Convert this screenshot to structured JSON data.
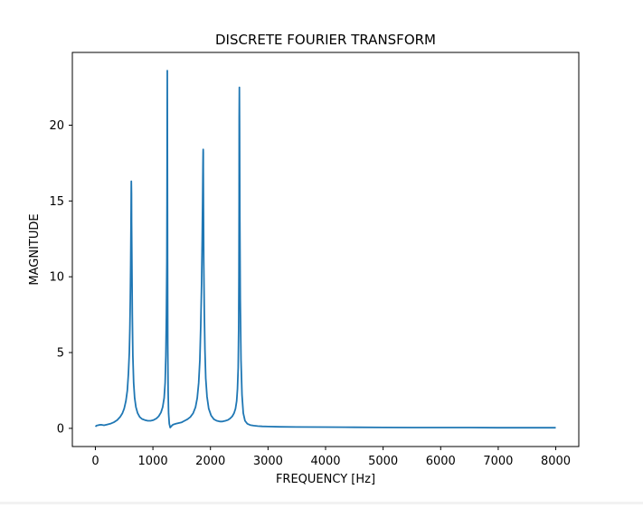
{
  "chart_data": {
    "type": "line",
    "title": "DISCRETE FOURIER TRANSFORM",
    "xlabel": "FREQUENCY [Hz]",
    "ylabel": "MAGNITUDE",
    "xlim": [
      -400,
      8400
    ],
    "ylim": [
      -1.2,
      24.8
    ],
    "xticks": [
      0,
      1000,
      2000,
      3000,
      4000,
      5000,
      6000,
      7000,
      8000
    ],
    "yticks": [
      0,
      5,
      10,
      15,
      20
    ],
    "grid": false,
    "series_color": "#1f77b4",
    "peaks": [
      {
        "frequency": 625,
        "magnitude": 16.3
      },
      {
        "frequency": 1250,
        "magnitude": 23.6
      },
      {
        "frequency": 1875,
        "magnitude": 18.4
      },
      {
        "frequency": 2500,
        "magnitude": 22.5
      }
    ],
    "series": [
      {
        "x": [
          0,
          20,
          60,
          100,
          150,
          200,
          260,
          320,
          380,
          430,
          470,
          500,
          530,
          555,
          575,
          590,
          600,
          608,
          614,
          618,
          621,
          623,
          625,
          627,
          630,
          635,
          642,
          652,
          665,
          682,
          705,
          735,
          770,
          810,
          860,
          910,
          960,
          1010,
          1060,
          1100,
          1140,
          1170,
          1195,
          1212,
          1225,
          1235,
          1242,
          1246,
          1249,
          1250,
          1251,
          1254,
          1258,
          1264,
          1272,
          1285,
          1300,
          1320,
          1350,
          1400,
          1450,
          1500,
          1550,
          1600,
          1650,
          1700,
          1740,
          1770,
          1795,
          1815,
          1832,
          1845,
          1856,
          1864,
          1869,
          1872,
          1874,
          1875,
          1876,
          1879,
          1884,
          1892,
          1903,
          1918,
          1940,
          1970,
          2010,
          2060,
          2110,
          2160,
          2210,
          2260,
          2300,
          2340,
          2380,
          2410,
          2435,
          2455,
          2470,
          2482,
          2490,
          2495,
          2498,
          2500,
          2502,
          2505,
          2510,
          2518,
          2530,
          2548,
          2570,
          2600,
          2640,
          2690,
          2750,
          2820,
          2900,
          3000,
          3200,
          3500,
          4000,
          4500,
          5000,
          5500,
          6000,
          6500,
          7000,
          7500,
          8000
        ],
        "y": [
          0.12,
          0.18,
          0.22,
          0.24,
          0.2,
          0.25,
          0.3,
          0.4,
          0.55,
          0.75,
          1.0,
          1.3,
          1.8,
          2.5,
          3.6,
          5.0,
          6.6,
          8.6,
          10.8,
          13.0,
          14.6,
          15.6,
          16.3,
          15.5,
          13.6,
          10.5,
          7.5,
          4.8,
          3.0,
          2.0,
          1.4,
          1.0,
          0.75,
          0.62,
          0.55,
          0.5,
          0.5,
          0.55,
          0.65,
          0.8,
          1.05,
          1.4,
          2.0,
          3.0,
          4.8,
          7.5,
          11.0,
          15.0,
          21.0,
          23.6,
          19.0,
          11.0,
          5.5,
          2.5,
          1.0,
          0.3,
          0.05,
          0.15,
          0.25,
          0.3,
          0.35,
          0.4,
          0.5,
          0.6,
          0.75,
          1.0,
          1.4,
          2.0,
          3.0,
          4.5,
          6.8,
          9.5,
          12.5,
          15.2,
          17.2,
          18.2,
          18.4,
          18.2,
          17.2,
          14.5,
          11.0,
          7.8,
          5.2,
          3.3,
          2.1,
          1.3,
          0.85,
          0.6,
          0.5,
          0.45,
          0.45,
          0.5,
          0.55,
          0.65,
          0.8,
          1.0,
          1.3,
          1.8,
          2.6,
          4.0,
          6.5,
          10.0,
          15.0,
          20.5,
          22.5,
          20.0,
          14.0,
          8.5,
          4.5,
          2.2,
          1.0,
          0.5,
          0.3,
          0.22,
          0.18,
          0.15,
          0.13,
          0.12,
          0.1,
          0.09,
          0.08,
          0.07,
          0.06,
          0.05,
          0.05,
          0.05,
          0.04,
          0.04,
          0.04
        ]
      }
    ]
  }
}
